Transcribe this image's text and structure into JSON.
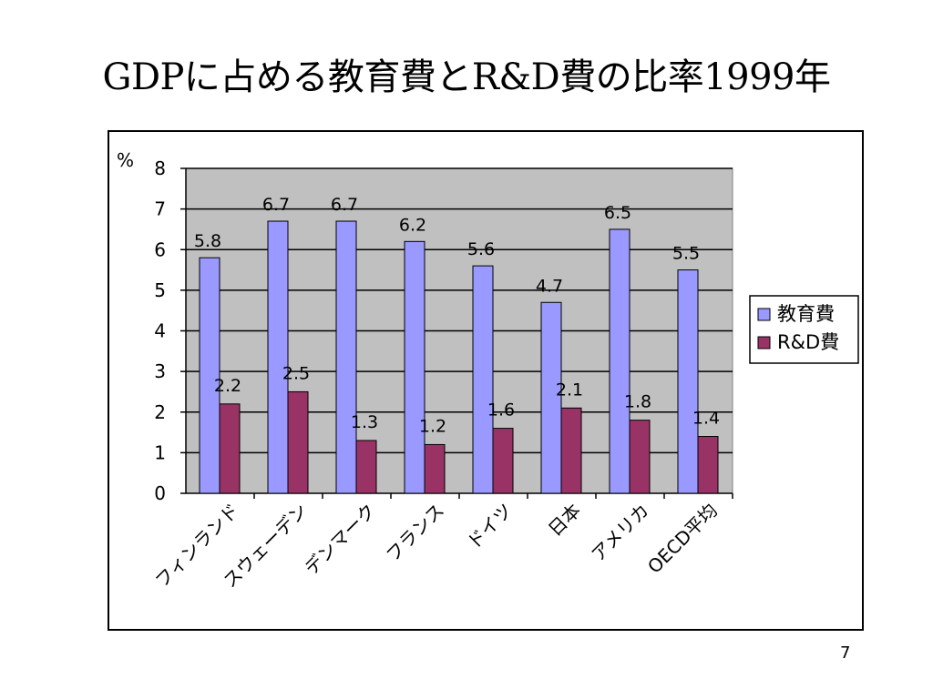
{
  "slide": {
    "title": "GDPに占める教育費とR&D費の比率1999年",
    "page_number": "7"
  },
  "colors": {
    "plot_bg": "#c0c0c0",
    "edu": "#9999ff",
    "rd": "#993366"
  },
  "chart_data": {
    "type": "bar",
    "title": "",
    "ylabel": "%",
    "xlabel": "",
    "ylim": [
      0,
      8
    ],
    "yticks": [
      "0",
      "1",
      "2",
      "3",
      "4",
      "5",
      "6",
      "7",
      "8"
    ],
    "grid": true,
    "legend_position": "right",
    "categories": [
      "フィンランド",
      "スウェーデン",
      "デンマーク",
      "フランス",
      "ドイツ",
      "日本",
      "アメリカ",
      "OECD平均"
    ],
    "series": [
      {
        "name": "教育費",
        "values": [
          5.8,
          6.7,
          6.7,
          6.2,
          5.6,
          4.7,
          6.5,
          5.5
        ]
      },
      {
        "name": "R&D費",
        "values": [
          2.2,
          2.5,
          1.3,
          1.2,
          1.6,
          2.1,
          1.8,
          1.4
        ]
      }
    ]
  }
}
